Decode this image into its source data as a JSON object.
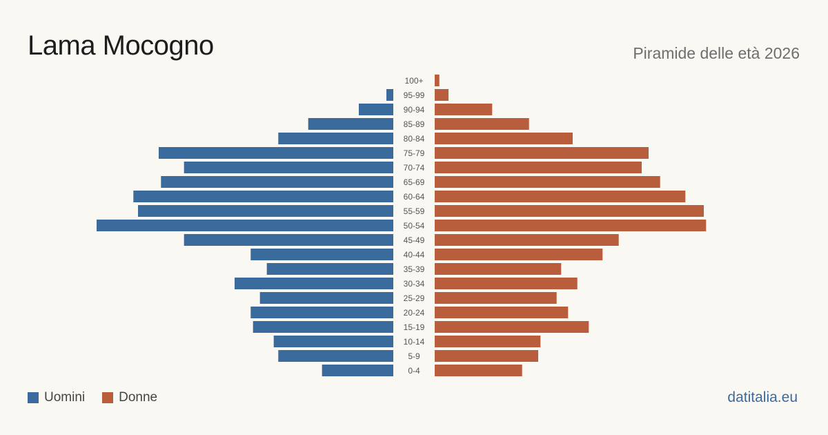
{
  "header": {
    "title": "Lama Mocogno",
    "subtitle": "Piramide delle età 2026"
  },
  "colors": {
    "men": "#3b6a9c",
    "women": "#b95e3d",
    "label": "#555555"
  },
  "legend": {
    "men_label": "Uomini",
    "women_label": "Donne"
  },
  "footer": {
    "brand": "datitalia.eu"
  },
  "chart_data": {
    "type": "bar",
    "orientation": "horizontal-population-pyramid",
    "title": "Lama Mocogno",
    "subtitle": "Piramide delle età 2026",
    "categories": [
      "100+",
      "95-99",
      "90-94",
      "85-89",
      "80-84",
      "75-79",
      "70-74",
      "65-69",
      "60-64",
      "55-59",
      "50-54",
      "45-49",
      "40-44",
      "35-39",
      "30-34",
      "25-29",
      "20-24",
      "15-19",
      "10-14",
      "5-9",
      "0-4"
    ],
    "series": [
      {
        "name": "Uomini",
        "side": "left",
        "values": [
          0,
          3,
          15,
          37,
          50,
          102,
          91,
          101,
          113,
          111,
          129,
          91,
          62,
          55,
          69,
          58,
          62,
          61,
          52,
          50,
          31
        ]
      },
      {
        "name": "Donne",
        "side": "right",
        "values": [
          2,
          6,
          25,
          41,
          60,
          93,
          90,
          98,
          109,
          117,
          118,
          80,
          73,
          55,
          62,
          53,
          58,
          67,
          46,
          45,
          38
        ]
      }
    ],
    "legend_position": "bottom-left",
    "grid": false,
    "axes_visible": false
  }
}
